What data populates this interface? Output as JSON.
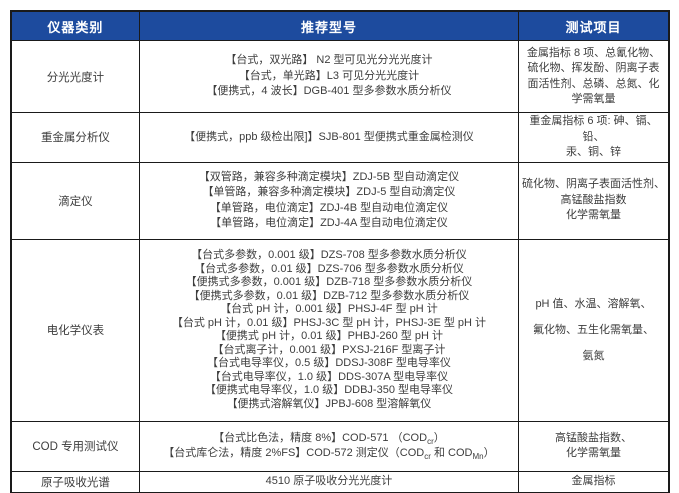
{
  "colors": {
    "header_bg": "#1D4B9E",
    "header_text": "#FFFFFF",
    "body_text": "#3D3D3D",
    "border": "#1A1A1A"
  },
  "table": {
    "header": {
      "columns": [
        "仪器类别",
        "推荐型号",
        "测试项目"
      ]
    },
    "rows": [
      {
        "category": "分光光度计",
        "models": [
          "【台式，双光路】 N2 型可见光分光光度计",
          "【台式，单光路】L3 可见分光光度计",
          "【便携式，4 波长】DGB-401 型多参数水质分析仪"
        ],
        "tests": [
          "金属指标 8 项、总氰化物、",
          "硫化物、挥发酚、阴离子表",
          "面活性剂、总磷、总氮、化",
          "学需氧量"
        ]
      },
      {
        "category": "重金属分析仪",
        "models": [
          "【便携式，ppb 级检出限]】SJB-801 型便携式重金属检测仪"
        ],
        "tests": [
          "重金属指标 6 项: 砷、镉、铅、",
          "汞、铜、锌"
        ]
      },
      {
        "category": "滴定仪",
        "models": [
          "【双管路，兼容多种滴定模块】ZDJ-5B 型自动滴定仪",
          "【单管路，兼容多种滴定模块】ZDJ-5 型自动滴定仪",
          "【单管路，电位滴定】ZDJ-4B 型自动电位滴定仪",
          "【单管路，电位滴定】ZDJ-4A 型自动电位滴定仪"
        ],
        "tests": [
          "硫化物、阴离子表面活性剂、",
          "高锰酸盐指数",
          "化学需氧量"
        ]
      },
      {
        "category": "电化学仪表",
        "models": [
          "【台式多参数，0.001 级】DZS-708 型多参数水质分析仪",
          "【台式多参数，0.01 级】DZS-706 型多参数水质分析仪",
          "【便携式多参数，0.001 级】DZB-718 型多参数水质分析仪",
          "【便携式多参数，0.01 级】DZB-712 型多参数水质分析仪",
          "【台式 pH 计，0.001 级】PHSJ-4F 型 pH 计",
          "【台式 pH 计，0.01 级】PHSJ-3C 型 pH 计，PHSJ-3E 型 pH 计",
          "【便携式 pH 计，0.01 级】PHBJ-260 型 pH 计",
          "【台式离子计，0.001 级】PXSJ-216F 型离子计",
          "【台式电导率仪，0.5 级】DDSJ-308F 型电导率仪",
          "【台式电导率仪，1.0 级】DDS-307A 型电导率仪",
          "【便携式电导率仪，1.0 级】DDBJ-350 型电导率仪",
          "【便携式溶解氧仪】JPBJ-608 型溶解氧仪"
        ],
        "tests": [
          "pH 值、水温、溶解氧、",
          "氟化物、五生化需氧量、",
          "氨氮"
        ]
      },
      {
        "category": "COD 专用测试仪",
        "models": [
          "【台式比色法，精度 8%】COD-571 （COD~cr~）",
          "【台式库仑法，精度 2%FS】COD-572 测定仪（COD~cr~ 和 COD~Mn~）"
        ],
        "tests": [
          "高锰酸盐指数、",
          "化学需氧量"
        ]
      },
      {
        "category": "原子吸收光谱",
        "models": [
          "4510 原子吸收分光光度计"
        ],
        "tests": [
          "金属指标"
        ]
      }
    ]
  }
}
